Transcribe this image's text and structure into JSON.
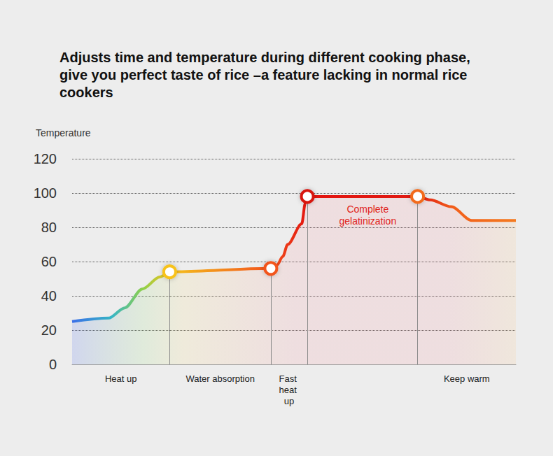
{
  "chart_data": {
    "type": "line",
    "title": "Adjusts time and temperature during different cooking phase, give you perfect taste of rice –a feature lacking in normal rice cookers",
    "y_label": "Temperature",
    "x": [
      0,
      52,
      75,
      100,
      125,
      139,
      283,
      292,
      300,
      307,
      327,
      332,
      335,
      492,
      510,
      540,
      569,
      632
    ],
    "values": [
      25,
      27,
      33,
      44,
      51,
      54,
      56,
      58,
      63,
      70,
      82,
      94,
      98,
      98,
      96,
      92,
      84,
      84
    ],
    "xlim": [
      0,
      632
    ],
    "ylim": [
      0,
      120
    ],
    "yticks": [
      0,
      20,
      40,
      60,
      80,
      100,
      120
    ],
    "grid": true,
    "tick_labels": "y",
    "phases": [
      {
        "label": "Heat up",
        "start": 0,
        "end": 139
      },
      {
        "label": "Water absorption",
        "start": 139,
        "end": 283
      },
      {
        "label": "Fast heat up",
        "start": 283,
        "end": 335
      },
      {
        "label": "Keep warm",
        "start": 492,
        "end": 632
      }
    ],
    "annotations": [
      {
        "text": "Complete gelatinization",
        "x": 421,
        "y": 87
      }
    ]
  }
}
